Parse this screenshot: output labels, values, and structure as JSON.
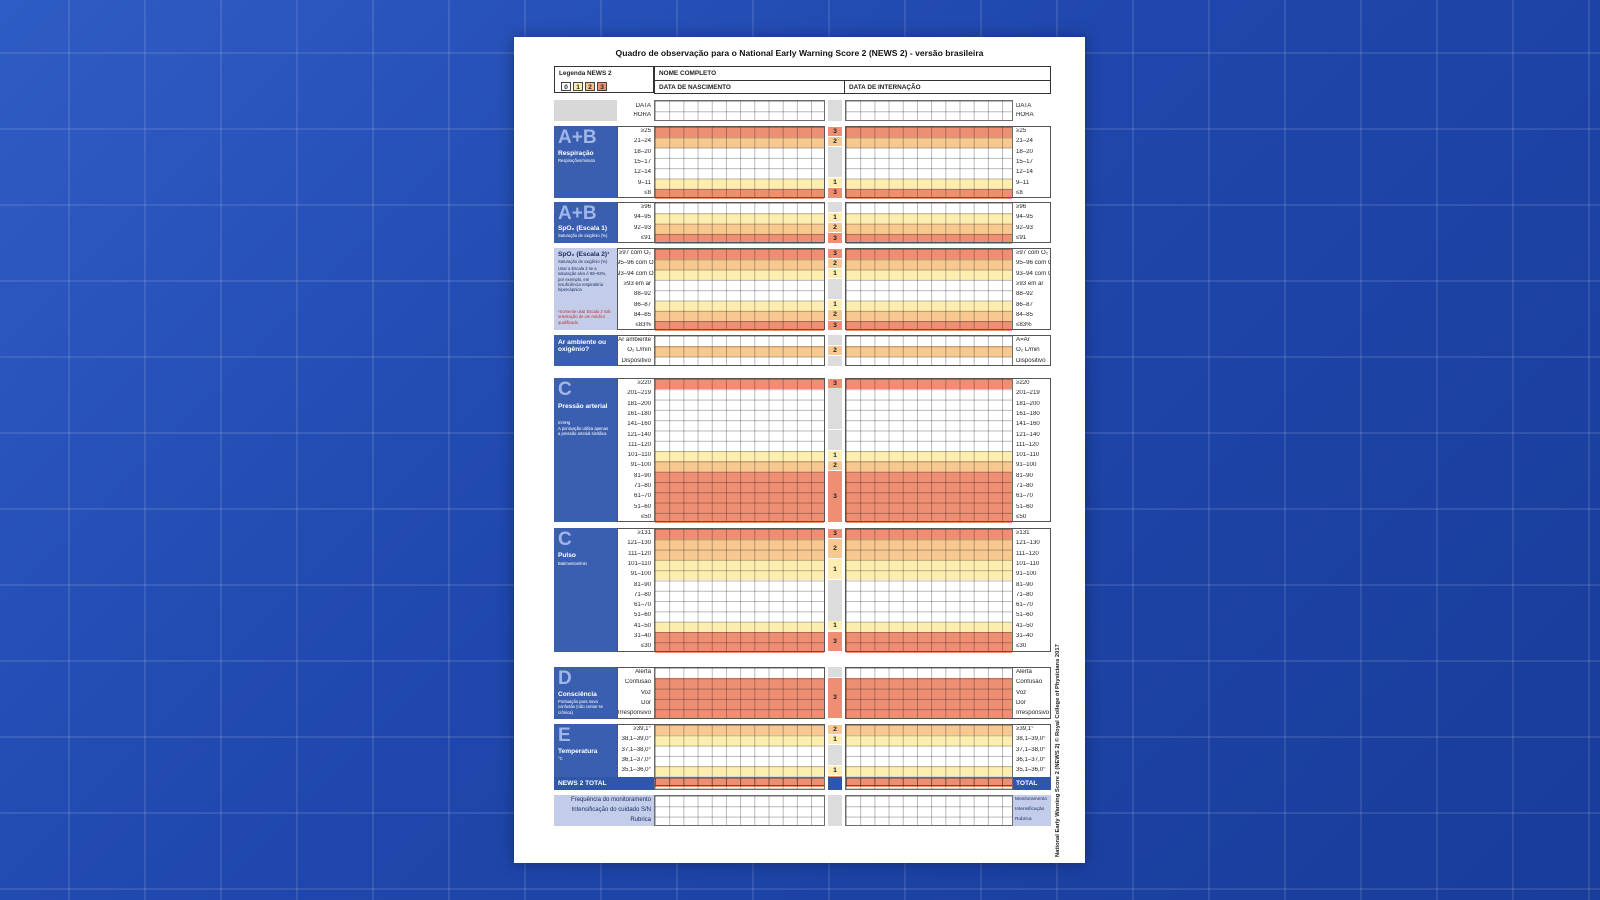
{
  "document": {
    "title": "Quadro de observação para o National Early Warning Score 2 (NEWS 2) - versão brasileira",
    "credit": "National Early Warning Score 2 (NEWS 2) © Royal College of Physicians 2017"
  },
  "legend": {
    "label": "Legenda NEWS 2",
    "chips": [
      "0",
      "1",
      "2",
      "3"
    ],
    "colors": {
      "0": "#ffffff",
      "1": "#fdeeb0",
      "2": "#f7c890",
      "3": "#ee8f73",
      "neutral": "#dcdcdc",
      "tab": "#3b5fb0",
      "background": "#2046a8"
    }
  },
  "header": {
    "full_name": "NOME COMPLETO",
    "birth_date": "DATA DE NASCIMENTO",
    "admission_date": "DATA DE INTERNAÇÃO"
  },
  "date_row": {
    "left": [
      "DATA",
      "HORA"
    ],
    "right": [
      "DATA",
      "HORA"
    ]
  },
  "sections": [
    {
      "id": "resp",
      "letter": "A+B",
      "title": "Respiração",
      "subtitle": "Respirações/minuto",
      "tab_style": "normal",
      "rows": [
        {
          "left": "≥25",
          "right": "≥25",
          "score": 3
        },
        {
          "left": "21–24",
          "right": "21–24",
          "score": 2
        },
        {
          "left": "18–20",
          "right": "18–20",
          "score": 0
        },
        {
          "left": "15–17",
          "right": "15–17",
          "score": 0
        },
        {
          "left": "12–14",
          "right": "12–14",
          "score": 0
        },
        {
          "left": "9–11",
          "right": "9–11",
          "score": 1
        },
        {
          "left": "≤8",
          "right": "≤8",
          "score": 3
        }
      ]
    },
    {
      "id": "spo2-1",
      "letter": "A+B",
      "title": "SpO₂ (Escala 1)",
      "subtitle": "Saturação de oxigênio (%)",
      "tab_style": "normal",
      "rows": [
        {
          "left": "≥96",
          "right": "≥96",
          "score": 0
        },
        {
          "left": "94–95",
          "right": "94–95",
          "score": 1
        },
        {
          "left": "92–93",
          "right": "92–93",
          "score": 2
        },
        {
          "left": "≤91",
          "right": "≤91",
          "score": 3
        }
      ]
    },
    {
      "id": "spo2-2",
      "letter": "",
      "title": "SpO₂ (Escala 2)¹",
      "subtitle": "Saturação de oxigênio (%)",
      "note": "Usar a Escala 2 se a saturação alvo é 88–92%, por exemplo, em insuficiência respiratória hipercápnica",
      "warning": "¹Somente usar Escala 2 sob orientação de um médico qualificado",
      "tab_style": "light",
      "rows": [
        {
          "left": "≥97 com O₂",
          "right": "≥97 com O₂",
          "score": 3
        },
        {
          "left": "95–96 com O₂",
          "right": "95–96 com O₂",
          "score": 2
        },
        {
          "left": "93–94 com O₂",
          "right": "93–94 com O₂",
          "score": 1
        },
        {
          "left": "≥93 em ar",
          "right": "≥93 em ar",
          "score": 0
        },
        {
          "left": "88–92",
          "right": "88–92",
          "score": 0
        },
        {
          "left": "86–87",
          "right": "86–87",
          "score": 1
        },
        {
          "left": "84–85",
          "right": "84–85",
          "score": 2
        },
        {
          "left": "≤83%",
          "right": "≤83%",
          "score": 3
        }
      ]
    },
    {
      "id": "air",
      "letter": "",
      "title": "Ar ambiente ou oxigênio?",
      "subtitle": "",
      "tab_style": "normal",
      "rows": [
        {
          "left": "Ar ambiente",
          "right": "A=Ar",
          "score": 0
        },
        {
          "left": "O₂ L/min",
          "right": "O₂ L/min",
          "score": 2
        },
        {
          "left": "Dispositivo",
          "right": "Dispositivo",
          "score": 0
        }
      ]
    },
    {
      "id": "bp",
      "letter": "C",
      "title": "Pressão arterial",
      "subtitle": "mmHg",
      "note": "A pontuação utiliza apenas a pressão arterial sistólica",
      "tab_style": "normal",
      "rows": [
        {
          "left": "≥220",
          "right": "≥220",
          "score": 3
        },
        {
          "left": "201–219",
          "right": "201–219",
          "score": 0
        },
        {
          "left": "181–200",
          "right": "181–200",
          "score": 0
        },
        {
          "left": "161–180",
          "right": "161–180",
          "score": 0
        },
        {
          "left": "141–160",
          "right": "141–160",
          "score": 0
        },
        {
          "left": "121–140",
          "right": "121–140",
          "score": 0
        },
        {
          "left": "111–120",
          "right": "111–120",
          "score": 0
        },
        {
          "left": "101–110",
          "right": "101–110",
          "score": 1
        },
        {
          "left": "91–100",
          "right": "91–100",
          "score": 2
        },
        {
          "left": "81–90",
          "right": "81–90",
          "score": 3
        },
        {
          "left": "71–80",
          "right": "71–80",
          "score": 3
        },
        {
          "left": "61–70",
          "right": "61–70",
          "score": 3
        },
        {
          "left": "51–60",
          "right": "51–60",
          "score": 3
        },
        {
          "left": "≤50",
          "right": "≤50",
          "score": 3
        }
      ]
    },
    {
      "id": "pulse",
      "letter": "C",
      "title": "Pulso",
      "subtitle": "Batimentos/min",
      "tab_style": "normal",
      "rows": [
        {
          "left": "≥131",
          "right": "≥131",
          "score": 3
        },
        {
          "left": "121–130",
          "right": "121–130",
          "score": 2
        },
        {
          "left": "111–120",
          "right": "111–120",
          "score": 2
        },
        {
          "left": "101–110",
          "right": "101–110",
          "score": 1
        },
        {
          "left": "91–100",
          "right": "91–100",
          "score": 1
        },
        {
          "left": "81–90",
          "right": "81–90",
          "score": 0
        },
        {
          "left": "71–80",
          "right": "71–80",
          "score": 0
        },
        {
          "left": "61–70",
          "right": "61–70",
          "score": 0
        },
        {
          "left": "51–60",
          "right": "51–60",
          "score": 0
        },
        {
          "left": "41–50",
          "right": "41–50",
          "score": 1
        },
        {
          "left": "31–40",
          "right": "31–40",
          "score": 3
        },
        {
          "left": "≤30",
          "right": "≤30",
          "score": 3
        }
      ]
    },
    {
      "id": "cons",
      "letter": "D",
      "title": "Consciência",
      "subtitle": "",
      "note": "Pontuação para nova confusão (não contar se crônica)",
      "tab_style": "normal",
      "rows": [
        {
          "left": "Alerta",
          "right": "Alerta",
          "score": 0
        },
        {
          "left": "Confusão",
          "right": "Confusão",
          "score": 3
        },
        {
          "left": "Voz",
          "right": "Voz",
          "score": 3
        },
        {
          "left": "Dor",
          "right": "Dor",
          "score": 3
        },
        {
          "left": "Irresponsivo",
          "right": "Irresponsivo",
          "score": 3
        }
      ]
    },
    {
      "id": "temp",
      "letter": "E",
      "title": "Temperatura",
      "subtitle": "°C",
      "tab_style": "normal",
      "rows": [
        {
          "left": "≥39,1°",
          "right": "≥39,1°",
          "score": 2
        },
        {
          "left": "38,1–39,0°",
          "right": "38,1–39,0°",
          "score": 1
        },
        {
          "left": "37,1–38,0°",
          "right": "37,1–38,0°",
          "score": 0
        },
        {
          "left": "36,1–37,0°",
          "right": "36,1–37,0°",
          "score": 0
        },
        {
          "left": "35,1–36,0°",
          "right": "35,1–36,0°",
          "score": 1
        },
        {
          "left": "≤35,0°",
          "right": "≤35,0°",
          "score": 3
        }
      ]
    }
  ],
  "total": {
    "left": "NEWS 2 TOTAL",
    "right": "TOTAL"
  },
  "footer": [
    {
      "left": "Frequência do monitoramento",
      "right": "Monitoramento"
    },
    {
      "left": "Intensificação do cuidado S/N",
      "right": "Intensificação"
    },
    {
      "left": "Rubrica",
      "right": "Rubrica"
    }
  ]
}
